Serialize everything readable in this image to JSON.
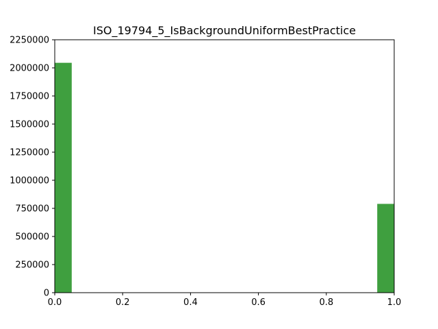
{
  "chart_data": {
    "type": "bar",
    "title": "ISO_19794_5_IsBackgroundUniformBestPractice",
    "xlabel": "",
    "ylabel": "",
    "xlim": [
      0.0,
      1.0
    ],
    "ylim": [
      0,
      2250000
    ],
    "x_ticks": [
      "0.0",
      "0.2",
      "0.4",
      "0.6",
      "0.8",
      "1.0"
    ],
    "x_tick_values": [
      0.0,
      0.2,
      0.4,
      0.6,
      0.8,
      1.0
    ],
    "y_ticks": [
      "0",
      "250000",
      "500000",
      "750000",
      "1000000",
      "1250000",
      "1500000",
      "1750000",
      "2000000",
      "2250000"
    ],
    "y_tick_values": [
      0,
      250000,
      500000,
      750000,
      1000000,
      1250000,
      1500000,
      1750000,
      2000000,
      2250000
    ],
    "bars": [
      {
        "x_start": 0.0,
        "x_end": 0.05,
        "value": 2045000
      },
      {
        "x_start": 0.95,
        "x_end": 1.0,
        "value": 790000
      }
    ],
    "bar_color": "#3f9f3f",
    "grid": false,
    "legend": "none"
  }
}
